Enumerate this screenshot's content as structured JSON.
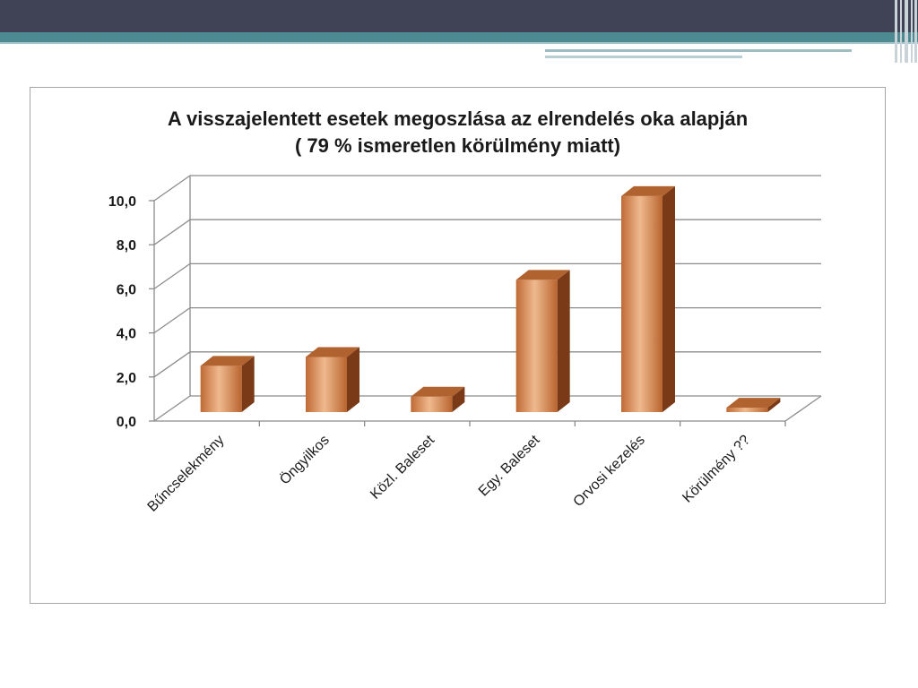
{
  "chart_data": {
    "type": "bar",
    "title": "A visszajelentett esetek megoszlása az elrendelés oka alapján",
    "subtitle": "( 79 % ismeretlen körülmény miatt)",
    "categories": [
      "Bűncselekmény",
      "Öngyilkos",
      "Közl. Baleset",
      "Egy. Baleset",
      "Orvosi kezelés",
      "Körülmény ??"
    ],
    "values": [
      2.1,
      2.5,
      0.7,
      6.0,
      9.8,
      0.2
    ],
    "ylim": [
      0,
      10
    ],
    "yticks": [
      "0,0",
      "2,0",
      "4,0",
      "6,0",
      "8,0",
      "10,0"
    ],
    "grid": true,
    "colors": {
      "bar_light": "#efb98e",
      "bar_mid": "#cf7c45",
      "bar_dark": "#a8562a",
      "bar_side": "#7a3a18",
      "bar_top": "#b0622f"
    }
  }
}
